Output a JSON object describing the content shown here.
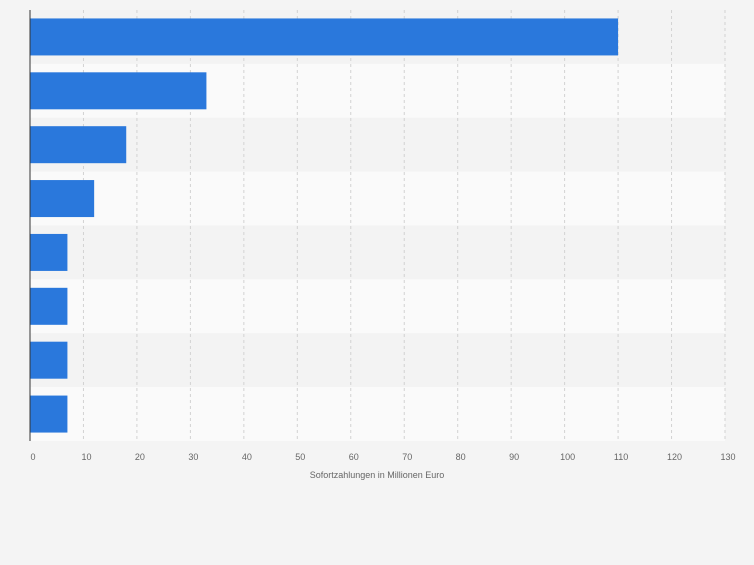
{
  "chart_data": {
    "type": "bar",
    "orientation": "horizontal",
    "categories": [
      "",
      "",
      "",
      "",
      "",
      "",
      "",
      ""
    ],
    "values": [
      110,
      33,
      18,
      12,
      7,
      7,
      7,
      7
    ],
    "title": "",
    "xlabel": "Sofortzahlungen in Millionen Euro",
    "ylabel": "",
    "xlim": [
      0,
      130
    ],
    "xticks": [
      0,
      10,
      20,
      30,
      40,
      50,
      60,
      70,
      80,
      90,
      100,
      110,
      120,
      130
    ],
    "tick_labels": [
      "0",
      "10",
      "20",
      "30",
      "40",
      "50",
      "60",
      "70",
      "80",
      "90",
      "100",
      "110",
      "120",
      "130"
    ],
    "grid": true,
    "bar_color": "#2a78dc",
    "band_colors": [
      "#f3f3f3",
      "#fafafa"
    ]
  }
}
